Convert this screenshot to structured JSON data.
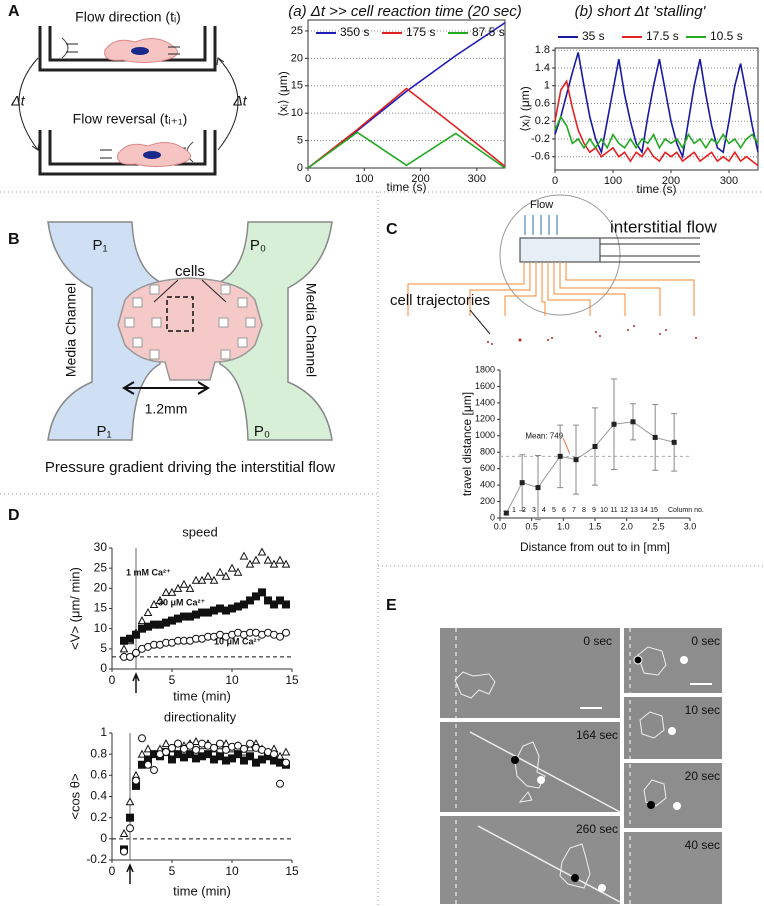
{
  "panel_labels": [
    "A",
    "B",
    "C",
    "D",
    "E"
  ],
  "panel_a": {
    "flow_direction": "Flow direction (tᵢ)",
    "flow_reversal": "Flow reversal (tᵢ₊₁)",
    "delta_left": "Δt",
    "delta_right": "Δt"
  },
  "panel_b": {
    "p1_top": "P₁",
    "p0_top": "P₀",
    "cells": "cells",
    "channel_left": "Media Channel",
    "channel_right": "Media Channel",
    "width": "1.2mm",
    "p1_bottom": "P₁",
    "p0_bottom": "P₀",
    "caption": "Pressure gradient driving the interstitial flow"
  },
  "panel_c": {
    "flow": "Flow",
    "interstitial_flow": "interstitial flow",
    "cell_trajectories": "cell trajectories"
  },
  "panel_e": {
    "left_times": [
      "0 sec",
      "164 sec",
      "260 sec"
    ],
    "right_times": [
      "0 sec",
      "10 sec",
      "20 sec",
      "40 sec"
    ]
  },
  "chart_data": [
    {
      "type": "line",
      "title": "(a) Δt >> cell reaction time (20 sec)",
      "x_label": "time (s)",
      "y_label": "⟨xᵢ⟩ (μm)",
      "x": [
        0,
        87.5,
        175,
        262.5,
        350
      ],
      "series": [
        {
          "name": "350 s",
          "color": "#1c1cb8",
          "values": [
            0,
            6.8,
            14,
            20.5,
            26.5
          ]
        },
        {
          "name": "175 s",
          "color": "#e02020",
          "values": [
            0,
            7,
            14.5,
            7.5,
            0.3
          ]
        },
        {
          "name": "87.5 s",
          "color": "#22aa22",
          "values": [
            0,
            6.5,
            0.5,
            6.3,
            0
          ]
        }
      ],
      "xlim": [
        0,
        350
      ],
      "xticks": [
        0,
        100,
        200,
        300
      ],
      "ylim": [
        0,
        27
      ],
      "yticks": [
        0,
        5,
        10,
        15,
        20,
        25
      ],
      "grid": true
    },
    {
      "type": "line",
      "title": "(b) short Δt 'stalling'",
      "x_label": "time (s)",
      "y_label": "⟨xᵢ⟩ (μm)",
      "x": [
        0,
        10,
        20,
        30,
        40,
        50,
        60,
        70,
        80,
        90,
        100,
        110,
        120,
        130,
        140,
        150,
        160,
        170,
        180,
        190,
        200,
        210,
        220,
        230,
        240,
        250,
        260,
        270,
        280,
        290,
        300,
        310,
        320,
        330,
        340,
        350
      ],
      "series": [
        {
          "name": "35 s",
          "color": "#1a1aa0",
          "values": [
            -0.1,
            0.3,
            0.8,
            1.3,
            1.75,
            1.0,
            0.3,
            -0.2,
            -0.5,
            0.2,
            0.9,
            1.6,
            0.8,
            0.2,
            -0.3,
            -0.5,
            0.3,
            1.0,
            1.6,
            0.9,
            0.2,
            -0.3,
            -0.6,
            0.2,
            1.0,
            1.6,
            0.8,
            0.1,
            -0.4,
            -0.5,
            0.2,
            1.0,
            1.5,
            0.8,
            0.1,
            -0.5
          ]
        },
        {
          "name": "17.5 s",
          "color": "#e52222",
          "values": [
            0.2,
            0.9,
            1.1,
            0.5,
            0.0,
            -0.3,
            -0.5,
            -0.4,
            -0.6,
            -0.5,
            -0.4,
            -0.6,
            -0.5,
            -0.7,
            -0.5,
            -0.6,
            -0.4,
            -0.6,
            -0.7,
            -0.5,
            -0.6,
            -0.5,
            -0.7,
            -0.6,
            -0.5,
            -0.7,
            -0.6,
            -0.5,
            -0.7,
            -0.6,
            -0.7,
            -0.5,
            -0.7,
            -0.6,
            -0.7,
            -0.8
          ]
        },
        {
          "name": "10.5 s",
          "color": "#22aa22",
          "values": [
            0.0,
            0.3,
            0.1,
            -0.3,
            -0.2,
            -0.4,
            -0.2,
            -0.4,
            -0.2,
            -0.4,
            -0.1,
            -0.3,
            -0.4,
            -0.2,
            -0.4,
            -0.2,
            -0.3,
            -0.1,
            -0.4,
            -0.2,
            -0.3,
            -0.2,
            -0.4,
            -0.1,
            -0.3,
            -0.2,
            -0.4,
            -0.2,
            -0.3,
            -0.1,
            -0.3,
            -0.2,
            -0.4,
            -0.2,
            -0.1,
            -0.3
          ]
        }
      ],
      "xlim": [
        0,
        350
      ],
      "xticks": [
        0,
        100,
        200,
        300
      ],
      "ylim": [
        -0.9,
        1.85
      ],
      "yticks": [
        -0.6,
        -0.2,
        0.2,
        0.6,
        1,
        1.4,
        1.8
      ],
      "grid": true
    },
    {
      "type": "errorbar",
      "x_label": "Distance from out to in [mm]",
      "y_label": "travel distance [μm]",
      "x": [
        0.1,
        0.35,
        0.6,
        0.95,
        1.2,
        1.5,
        1.8,
        2.1,
        2.45,
        2.75
      ],
      "values": [
        60,
        430,
        370,
        750,
        710,
        870,
        1140,
        1170,
        980,
        920
      ],
      "errors": [
        20,
        340,
        390,
        380,
        420,
        470,
        550,
        220,
        400,
        350
      ],
      "color": "#222222",
      "mean": 749,
      "mean_label": "Mean: 749",
      "mean_color": "#e8743b",
      "column_numbers": [
        1,
        2,
        3,
        4,
        5,
        6,
        7,
        8,
        9,
        10,
        11,
        12,
        13,
        14,
        15
      ],
      "column_label": "Column no.",
      "xlim": [
        0,
        3
      ],
      "xticks": [
        {
          "value": 0,
          "label": "0.0"
        },
        0.5,
        {
          "value": 1,
          "label": "1.0"
        },
        1.5,
        {
          "value": 2,
          "label": "2.0"
        },
        2.5,
        {
          "value": 3,
          "label": "3.0"
        }
      ],
      "ylim": [
        0,
        1800
      ],
      "yticks": [
        0,
        200,
        400,
        600,
        800,
        1000,
        1200,
        1400,
        1600,
        1800
      ]
    },
    {
      "type": "scatter",
      "title": "speed",
      "x_label": "time (min)",
      "y_label": "<V> (μm/ min)",
      "x": [
        1,
        1.5,
        2,
        2.5,
        3,
        3.5,
        4,
        4.5,
        5,
        5.5,
        6,
        6.5,
        7,
        7.5,
        8,
        8.5,
        9,
        9.5,
        10,
        10.5,
        11,
        11.5,
        12,
        12.5,
        13,
        13.5,
        14,
        14.5
      ],
      "series": [
        {
          "name": "1 mM Ca²⁺",
          "marker": "triangle",
          "filled": false,
          "values": [
            5,
            7,
            9,
            12,
            14,
            16,
            17,
            19,
            19,
            20,
            21,
            20,
            22,
            22,
            23,
            22,
            24,
            23,
            25,
            24,
            28,
            26,
            27,
            29,
            27,
            26,
            27,
            26
          ]
        },
        {
          "name": "30 μM Ca²⁺",
          "marker": "square",
          "filled": true,
          "values": [
            7,
            7.5,
            8.5,
            10,
            10.5,
            11,
            11,
            11.5,
            12,
            12.5,
            13,
            13,
            13.5,
            14,
            14,
            14.5,
            15,
            14.5,
            15,
            15.5,
            16,
            17,
            18,
            19,
            17,
            16,
            17,
            16
          ]
        },
        {
          "name": "10 μM Ca²⁺",
          "marker": "circle",
          "filled": false,
          "values": [
            3,
            3,
            4,
            5,
            5.5,
            6,
            6,
            6.5,
            6.5,
            7,
            7,
            7,
            7.5,
            7.5,
            8,
            8,
            8.5,
            8,
            8.5,
            9,
            8.5,
            9,
            9,
            8.5,
            9,
            8.5,
            8,
            9
          ]
        }
      ],
      "xlim": [
        0,
        15
      ],
      "xticks": [
        0,
        5,
        10,
        15
      ],
      "ylim": [
        0,
        30
      ],
      "yticks": [
        0,
        5,
        10,
        15,
        20,
        25,
        30
      ],
      "reference_y": 3,
      "event_x": 2
    },
    {
      "type": "scatter",
      "title": "directionality",
      "x_label": "time (min)",
      "y_label": "<cos θ>",
      "x": [
        1,
        1.5,
        2,
        2.5,
        3,
        3.5,
        4,
        4.5,
        5,
        5.5,
        6,
        6.5,
        7,
        7.5,
        8,
        8.5,
        9,
        9.5,
        10,
        10.5,
        11,
        11.5,
        12,
        12.5,
        13,
        13.5,
        14,
        14.5
      ],
      "series": [
        {
          "marker": "triangle",
          "filled": false,
          "values": [
            0.05,
            0.35,
            0.6,
            0.8,
            0.85,
            0.8,
            0.85,
            0.9,
            0.85,
            0.9,
            0.88,
            0.9,
            0.92,
            0.88,
            0.9,
            0.85,
            0.88,
            0.9,
            0.85,
            0.88,
            0.82,
            0.86,
            0.9,
            0.85,
            0.8,
            0.85,
            0.78,
            0.82
          ]
        },
        {
          "marker": "square",
          "filled": true,
          "values": [
            -0.1,
            0.2,
            0.5,
            0.7,
            0.75,
            0.8,
            0.78,
            0.82,
            0.75,
            0.8,
            0.77,
            0.8,
            0.76,
            0.78,
            0.8,
            0.75,
            0.78,
            0.74,
            0.76,
            0.8,
            0.74,
            0.78,
            0.72,
            0.75,
            0.78,
            0.74,
            0.72,
            0.7
          ]
        },
        {
          "marker": "circle",
          "filled": false,
          "values": [
            -0.12,
            0.1,
            0.55,
            0.95,
            0.7,
            0.65,
            0.8,
            0.82,
            0.86,
            0.9,
            0.85,
            0.88,
            0.84,
            0.9,
            0.88,
            0.86,
            0.9,
            0.84,
            0.87,
            0.88,
            0.85,
            0.9,
            0.86,
            0.84,
            0.82,
            0.8,
            0.52,
            0.72
          ]
        }
      ],
      "xlim": [
        0,
        15
      ],
      "xticks": [
        0,
        5,
        10,
        15
      ],
      "ylim": [
        -0.2,
        1
      ],
      "yticks": [
        -0.2,
        0,
        0.2,
        0.4,
        0.6,
        0.8,
        1
      ],
      "reference_y": 0,
      "event_x": 1.5
    }
  ]
}
